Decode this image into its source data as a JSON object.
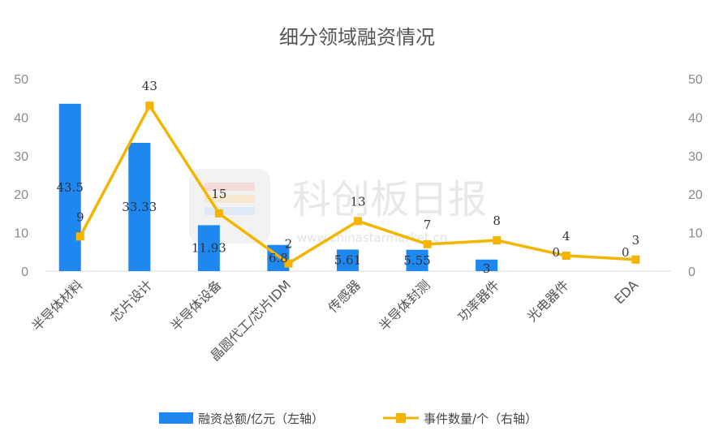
{
  "chart_data": {
    "type": "bar",
    "title": "细分领域融资情况",
    "categories": [
      "半导体材料",
      "芯片设计",
      "半导体设备",
      "晶圆代工/芯片IDM",
      "传感器",
      "半导体封测",
      "功率器件",
      "光电器件",
      "EDA"
    ],
    "series": [
      {
        "name": "融资总额/亿元（左轴）",
        "type": "bar",
        "axis": "left",
        "values": [
          43.5,
          33.33,
          11.93,
          6.8,
          5.61,
          5.55,
          3,
          0,
          0
        ],
        "labels": [
          "43.5",
          "33.33",
          "11.93",
          "6.8",
          "5.61",
          "5.55",
          "3",
          "0",
          "0"
        ]
      },
      {
        "name": "事件数量/个（右轴）",
        "type": "line",
        "axis": "right",
        "values": [
          9,
          43,
          15,
          2,
          13,
          7,
          8,
          4,
          3
        ],
        "labels": [
          "9",
          "43",
          "15",
          "2",
          "13",
          "7",
          "8",
          "4",
          "3"
        ]
      }
    ],
    "ylim_left": [
      0,
      50
    ],
    "ylim_right": [
      0,
      50
    ],
    "yticks_left": [
      "0",
      "10",
      "20",
      "30",
      "40",
      "50"
    ],
    "yticks_right": [
      "0",
      "10",
      "20",
      "30",
      "40",
      "50"
    ],
    "grid": false,
    "legend_position": "bottom"
  },
  "colors": {
    "bar": "#1e88f0",
    "line": "#f5b400",
    "axis": "#d9d9d9"
  },
  "watermark": {
    "text": "科创板日报",
    "url": "www.chinastarmarket.cn"
  }
}
